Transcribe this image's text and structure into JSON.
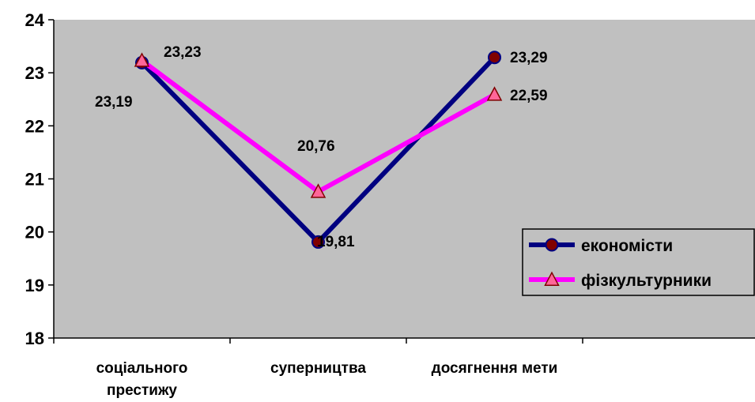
{
  "chart_data": {
    "type": "line",
    "categories": [
      "соціального престижу",
      "суперництва",
      "досягнення мети"
    ],
    "category_lines": [
      [
        "соціального",
        "престижу"
      ],
      [
        "суперництва"
      ],
      [
        "досягнення мети"
      ]
    ],
    "series": [
      {
        "name": "економісти",
        "values": [
          23.19,
          19.81,
          23.29
        ],
        "labels": [
          "23,19",
          "19,81",
          "23,29"
        ],
        "color": "#000080",
        "marker": "circle",
        "marker_fill": "#800000"
      },
      {
        "name": "фізкультурники",
        "values": [
          23.23,
          20.76,
          22.59
        ],
        "labels": [
          "23,23",
          "20,76",
          "22,59"
        ],
        "color": "#FF00FF",
        "marker": "triangle",
        "marker_fill": "#FF6699"
      }
    ],
    "yticks": [
      "18",
      "19",
      "20",
      "21",
      "22",
      "23",
      "24"
    ],
    "ylim": [
      18,
      24
    ],
    "title": "",
    "xlabel": "",
    "ylabel": "",
    "plot_background": "#C0C0C0",
    "grid": false,
    "legend_position": "right"
  }
}
